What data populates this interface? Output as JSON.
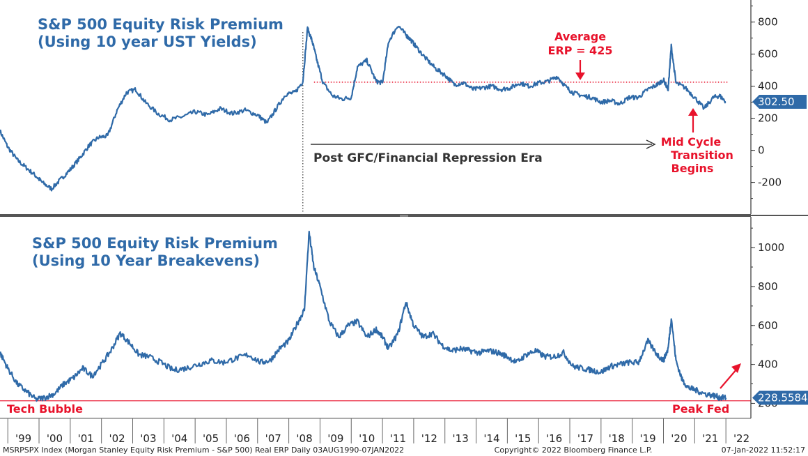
{
  "chart_data": [
    {
      "type": "line",
      "title": "S&P 500 Equity Risk Premium",
      "subtitle": "(Using 10 year UST Yields)",
      "ylim": [
        -380,
        920
      ],
      "yticks": [
        -200,
        0,
        200,
        400,
        600,
        800
      ],
      "grid": false,
      "last_value_label": "302.50",
      "last_value": 302.5,
      "reference_line": {
        "y": 425,
        "style": "dotted",
        "color": "#e8122b"
      },
      "annotations": {
        "average": [
          "Average",
          "ERP = 425"
        ],
        "era": "Post GFC/Financial Repression Era",
        "mid_cycle": [
          "Mid Cycle",
          "Transition",
          "Begins"
        ]
      },
      "series": [
        {
          "color": "#2f6aa8",
          "x": [
            1998.75,
            1999.0,
            1999.3,
            1999.6,
            1999.9,
            2000.1,
            2000.4,
            2000.7,
            2001.0,
            2001.3,
            2001.6,
            2001.9,
            2002.2,
            2002.5,
            2002.8,
            2003.1,
            2003.4,
            2003.8,
            2004.2,
            2004.6,
            2005.0,
            2005.4,
            2005.8,
            2006.2,
            2006.6,
            2007.0,
            2007.3,
            2007.6,
            2007.9,
            2008.2,
            2008.45,
            2008.6,
            2008.75,
            2008.9,
            2009.1,
            2009.4,
            2009.7,
            2010.0,
            2010.2,
            2010.5,
            2010.8,
            2011.0,
            2011.2,
            2011.5,
            2011.75,
            2011.9,
            2012.1,
            2012.4,
            2012.7,
            2013.0,
            2013.3,
            2013.6,
            2013.9,
            2014.2,
            2014.5,
            2014.8,
            2015.1,
            2015.4,
            2015.7,
            2016.0,
            2016.3,
            2016.6,
            2016.9,
            2017.1,
            2017.4,
            2017.7,
            2018.0,
            2018.3,
            2018.6,
            2018.9,
            2019.2,
            2019.5,
            2019.8,
            2020.0,
            2020.15,
            2020.25,
            2020.4,
            2020.7,
            2021.0,
            2021.3,
            2021.6,
            2021.8,
            2022.0
          ],
          "y": [
            120,
            20,
            -60,
            -110,
            -160,
            -200,
            -240,
            -180,
            -120,
            -50,
            30,
            80,
            90,
            250,
            360,
            380,
            300,
            230,
            190,
            210,
            240,
            220,
            260,
            230,
            250,
            220,
            170,
            260,
            350,
            360,
            430,
            760,
            680,
            560,
            420,
            340,
            320,
            330,
            520,
            560,
            430,
            420,
            680,
            780,
            720,
            690,
            640,
            570,
            510,
            470,
            410,
            420,
            380,
            390,
            400,
            380,
            390,
            420,
            400,
            420,
            430,
            460,
            390,
            360,
            340,
            330,
            300,
            310,
            290,
            330,
            330,
            380,
            410,
            440,
            380,
            650,
            420,
            390,
            330,
            260,
            330,
            340,
            302
          ]
        }
      ]
    },
    {
      "type": "line",
      "title": "S&P 500 Equity Risk Premium",
      "subtitle": "(Using 10 Year Breakevens)",
      "ylim": [
        130,
        1140
      ],
      "yticks": [
        200,
        400,
        600,
        800,
        1000
      ],
      "grid": false,
      "last_value_label": "228.5584",
      "last_value": 228.56,
      "reference_line": {
        "y": 213,
        "style": "solid",
        "color": "#e8122b"
      },
      "annotations": {
        "left": "Tech Bubble",
        "right": "Peak Fed"
      },
      "series": [
        {
          "color": "#2f6aa8",
          "x": [
            1998.75,
            1999.0,
            1999.3,
            1999.6,
            1999.9,
            2000.2,
            2000.5,
            2000.8,
            2001.1,
            2001.4,
            2001.7,
            2002.0,
            2002.3,
            2002.6,
            2002.9,
            2003.2,
            2003.5,
            2003.9,
            2004.3,
            2004.7,
            2005.1,
            2005.5,
            2005.9,
            2006.3,
            2006.7,
            2007.1,
            2007.4,
            2007.7,
            2008.0,
            2008.3,
            2008.5,
            2008.65,
            2008.8,
            2009.0,
            2009.3,
            2009.6,
            2009.9,
            2010.2,
            2010.5,
            2010.8,
            2011.0,
            2011.2,
            2011.5,
            2011.75,
            2012.0,
            2012.3,
            2012.6,
            2012.9,
            2013.2,
            2013.5,
            2013.8,
            2014.1,
            2014.4,
            2014.7,
            2015.0,
            2015.3,
            2015.6,
            2015.9,
            2016.2,
            2016.5,
            2016.8,
            2017.1,
            2017.4,
            2017.7,
            2018.0,
            2018.3,
            2018.6,
            2018.9,
            2019.2,
            2019.5,
            2019.8,
            2020.0,
            2020.15,
            2020.25,
            2020.4,
            2020.6,
            2020.8,
            2021.0,
            2021.3,
            2021.6,
            2021.8,
            2022.0
          ],
          "y": [
            460,
            380,
            300,
            260,
            220,
            230,
            250,
            300,
            330,
            380,
            340,
            400,
            470,
            560,
            510,
            450,
            440,
            410,
            370,
            380,
            400,
            420,
            410,
            430,
            450,
            410,
            420,
            480,
            520,
            620,
            680,
            1080,
            900,
            800,
            620,
            540,
            600,
            620,
            540,
            580,
            540,
            480,
            560,
            720,
            600,
            540,
            560,
            500,
            470,
            480,
            470,
            460,
            470,
            460,
            440,
            410,
            450,
            470,
            440,
            440,
            460,
            390,
            380,
            370,
            360,
            390,
            400,
            410,
            410,
            520,
            450,
            420,
            480,
            640,
            420,
            320,
            280,
            270,
            250,
            240,
            230,
            228
          ]
        }
      ]
    }
  ],
  "xaxis": {
    "range": [
      1998.75,
      2022.8
    ],
    "ticks": [
      {
        "label": "'99",
        "year": 1999
      },
      {
        "label": "'00",
        "year": 2000
      },
      {
        "label": "'01",
        "year": 2001
      },
      {
        "label": "'02",
        "year": 2002
      },
      {
        "label": "'03",
        "year": 2003
      },
      {
        "label": "'04",
        "year": 2004
      },
      {
        "label": "'05",
        "year": 2005
      },
      {
        "label": "'06",
        "year": 2006
      },
      {
        "label": "'07",
        "year": 2007
      },
      {
        "label": "'08",
        "year": 2008
      },
      {
        "label": "'09",
        "year": 2009
      },
      {
        "label": "'10",
        "year": 2010
      },
      {
        "label": "'11",
        "year": 2011
      },
      {
        "label": "'12",
        "year": 2012
      },
      {
        "label": "'13",
        "year": 2013
      },
      {
        "label": "'14",
        "year": 2014
      },
      {
        "label": "'15",
        "year": 2015
      },
      {
        "label": "'16",
        "year": 2016
      },
      {
        "label": "'17",
        "year": 2017
      },
      {
        "label": "'18",
        "year": 2018
      },
      {
        "label": "'19",
        "year": 2019
      },
      {
        "label": "'20",
        "year": 2020
      },
      {
        "label": "'21",
        "year": 2021
      },
      {
        "label": "'22",
        "year": 2022
      }
    ],
    "gfc_marker_year": 2008.45
  },
  "footer": {
    "left": "MSRPSPX Index (Morgan Stanley Equity Risk Premium - S&P 500) Real ERP  Daily 03AUG1990-07JAN2022",
    "center": "Copyright© 2022 Bloomberg Finance L.P.",
    "right": "07-Jan-2022 11:52:17"
  },
  "colors": {
    "series": "#2f6aa8",
    "annotation": "#e8122b",
    "divider": "#555555"
  }
}
